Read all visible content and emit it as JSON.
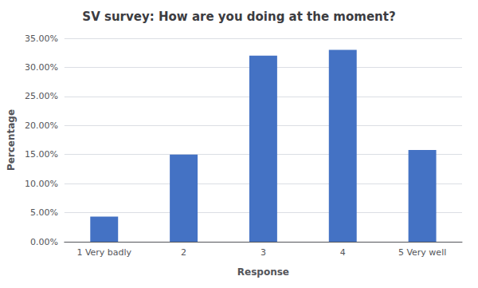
{
  "chart_data": {
    "type": "bar",
    "title": "SV survey: How are you doing at the moment?",
    "categories": [
      "1 Very badly",
      "2",
      "3",
      "4",
      "5 Very well"
    ],
    "values": [
      0.0433,
      0.15,
      0.32,
      0.33,
      0.158
    ],
    "color": "#4472C4",
    "xlabel": "Response",
    "ylabel": "Percentage",
    "ylim": [
      0,
      0.35
    ],
    "yticks": [
      {
        "value": 0.0,
        "label": "0.00%"
      },
      {
        "value": 0.05,
        "label": "5.00%"
      },
      {
        "value": 0.1,
        "label": "10.00%"
      },
      {
        "value": 0.15,
        "label": "15.00%"
      },
      {
        "value": 0.2,
        "label": "20.00%"
      },
      {
        "value": 0.25,
        "label": "25.00%"
      },
      {
        "value": 0.3,
        "label": "30.00%"
      },
      {
        "value": 0.35,
        "label": "35.00%"
      }
    ],
    "grid": true
  }
}
